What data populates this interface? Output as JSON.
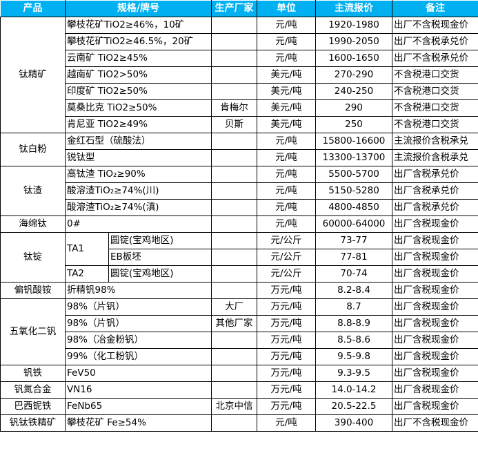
{
  "header": {
    "product": "产品",
    "spec": "规格/牌号",
    "maker": "生产厂家",
    "unit": "单位",
    "price": "主流报价",
    "note": "备注"
  },
  "colors": {
    "header_bg": "#00B0F0",
    "header_text": "#FFFFFF"
  },
  "groups": [
    {
      "product": "钛精矿",
      "rows": [
        {
          "spec": "攀枝花矿TiO2≥46%，10矿",
          "maker": "",
          "unit": "元/吨",
          "price": "1920-1980",
          "note": "出厂不含税现金价"
        },
        {
          "spec": "攀枝花矿TiO2≥46.5%，20矿",
          "maker": "",
          "unit": "元/吨",
          "price": "1990-2050",
          "note": "出厂不含税承兑价"
        },
        {
          "spec": "云南矿 TiO2≥45%",
          "maker": "",
          "unit": "元/吨",
          "price": "1600-1650",
          "note": "出厂不含税承兑价"
        },
        {
          "spec": "越南矿 TiO2>50%",
          "maker": "",
          "unit": "美元/吨",
          "price": "270-290",
          "note": "不含税港口交货"
        },
        {
          "spec": "印度矿 TiO2≥50%",
          "maker": "",
          "unit": "美元/吨",
          "price": "240-250",
          "note": "不含税港口交货"
        },
        {
          "spec": "莫桑比克 TiO2≥50%",
          "maker": "肯梅尔",
          "unit": "美元/吨",
          "price": "290",
          "note": "不含税港口交货"
        },
        {
          "spec": "肯尼亚 TiO2≥49%",
          "maker": "贝斯",
          "unit": "美元/吨",
          "price": "250",
          "note": "不含税港口交货"
        }
      ]
    },
    {
      "product": "钛白粉",
      "rows": [
        {
          "spec": "金红石型（硫酸法）",
          "maker": "",
          "unit": "元/吨",
          "price": "15800-16600",
          "note": "主流报价含税承兑"
        },
        {
          "spec": "锐钛型",
          "maker": "",
          "unit": "元/吨",
          "price": "13300-13700",
          "note": "主流报价含税承兑"
        }
      ]
    },
    {
      "product": "钛渣",
      "rows": [
        {
          "spec": "高钛渣 TiO₂≥90%",
          "maker": "",
          "unit": "元/吨",
          "price": "5500-5700",
          "note": "出厂含税承兑价"
        },
        {
          "spec": "酸溶渣TiO₂≥74%(川)",
          "maker": "",
          "unit": "元/吨",
          "price": "5150-5280",
          "note": "出厂含税承兑价"
        },
        {
          "spec": "酸溶渣TiO₂≥74%(滇)",
          "maker": "",
          "unit": "元/吨",
          "price": "4800-4850",
          "note": "出厂含税承兑价"
        }
      ]
    },
    {
      "product": "海绵钛",
      "rows": [
        {
          "spec": "0#",
          "maker": "",
          "unit": "元/吨",
          "price": "60000-64000",
          "note": "出厂含税现金价"
        }
      ]
    },
    {
      "product": "钛锭",
      "rows": [
        {
          "grade": "TA1",
          "spec": "圆锭(宝鸡地区)",
          "maker": "",
          "unit": "元/公斤",
          "price": "73-77",
          "note": "出厂含税现金价"
        },
        {
          "grade": "TA1",
          "spec": "EB板坯",
          "maker": "",
          "unit": "元/公斤",
          "price": "77-81",
          "note": "出厂含税现金价"
        },
        {
          "grade": "TA2",
          "spec": "圆锭(宝鸡地区)",
          "maker": "",
          "unit": "元/公斤",
          "price": "70-74",
          "note": "出厂含税现金价"
        }
      ]
    },
    {
      "product": "偏钒酸铵",
      "rows": [
        {
          "spec": "折精钒98%",
          "maker": "",
          "unit": "万元/吨",
          "price": "8.2-8.4",
          "note": "出厂含税现金价"
        }
      ]
    },
    {
      "product": "五氧化二钒",
      "rows": [
        {
          "spec": "98%（片钒）",
          "maker": "大厂",
          "unit": "万元/吨",
          "price": "8.7",
          "note": "出厂含税现金价"
        },
        {
          "spec": "98%（片钒）",
          "maker": "其他厂家",
          "unit": "万元/吨",
          "price": "8.8-8.9",
          "note": "出厂含税现金价"
        },
        {
          "spec": "98%（冶金粉钒）",
          "maker": "",
          "unit": "万元/吨",
          "price": "8.5-8.6",
          "note": "出厂含税现金价"
        },
        {
          "spec": "99%（化工粉钒）",
          "maker": "",
          "unit": "万元/吨",
          "price": "9.5-9.8",
          "note": "出厂含税现金价"
        }
      ]
    },
    {
      "product": "钒铁",
      "rows": [
        {
          "spec": "FeV50",
          "maker": "",
          "unit": "万元/吨",
          "price": "9.3-9.5",
          "note": "出厂含税现金价"
        }
      ]
    },
    {
      "product": "钒氮合金",
      "rows": [
        {
          "spec": "VN16",
          "maker": "",
          "unit": "万元/吨",
          "price": "14.0-14.2",
          "note": "出厂含税现金价"
        }
      ]
    },
    {
      "product": "巴西铌铁",
      "rows": [
        {
          "spec": "FeNb65",
          "maker": "北京中信",
          "unit": "万元/吨",
          "price": "20.5-22.5",
          "note": "出厂含税现金价"
        }
      ]
    },
    {
      "product": "钒钛铁精矿",
      "rows": [
        {
          "spec": "攀枝花矿 Fe≥54%",
          "maker": "",
          "unit": "元/吨",
          "price": "390-400",
          "note": "出厂不含税现金价"
        }
      ]
    }
  ]
}
